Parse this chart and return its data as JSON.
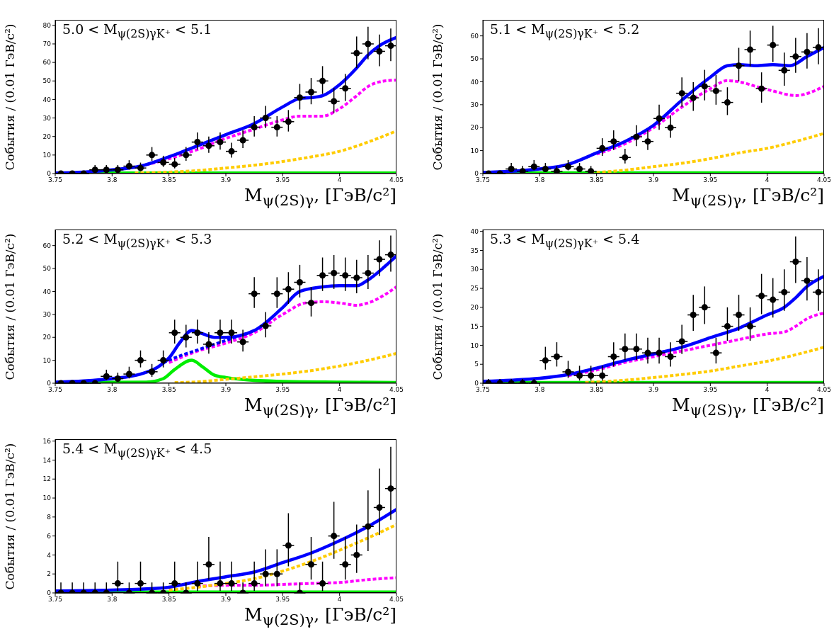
{
  "chart_data": [
    {
      "type": "scatter",
      "title": "5.0 < M$_{ψ(2S)γK⁺}$ < 5.1",
      "xlabel": "M$_{ψ(2S)γ}$, [ГэВ/c²]",
      "ylabel": "События / (0.01 ГэВ/c²)",
      "xlim": [
        3.75,
        4.05
      ],
      "xticks": [
        3.75,
        3.8,
        3.85,
        3.9,
        3.95,
        4,
        4.05
      ],
      "ylim": [
        0,
        83
      ],
      "yticks": [
        0,
        10,
        20,
        30,
        40,
        50,
        60,
        70,
        80
      ],
      "series": [
        {
          "type": "line",
          "color": "#00ee00",
          "line_style": "solid",
          "x": [
            3.75,
            4.05
          ],
          "values": [
            0.3,
            0.3
          ]
        },
        {
          "type": "line",
          "color": "#ffcc00",
          "line_style": "dashed",
          "x": [
            3.82,
            3.85,
            3.875,
            3.9,
            3.925,
            3.95,
            3.975,
            4,
            4.025,
            4.05
          ],
          "values": [
            0.3,
            0.8,
            1.6,
            3,
            4.5,
            6.5,
            9,
            12,
            17,
            23
          ]
        },
        {
          "type": "line",
          "color": "#ff00ff",
          "line_style": "dashed",
          "x": [
            3.825,
            3.85,
            3.875,
            3.9,
            3.925,
            3.95,
            3.965,
            3.985,
            4,
            4.015,
            4.025,
            4.035,
            4.05
          ],
          "values": [
            4,
            8,
            13,
            19,
            24,
            29,
            31,
            31,
            35,
            42,
            47,
            49.5,
            50.5
          ]
        },
        {
          "type": "line",
          "color": "#0000ff",
          "line_style": "solid",
          "x": [
            3.75,
            3.775,
            3.8,
            3.825,
            3.85,
            3.875,
            3.9,
            3.925,
            3.95,
            3.965,
            3.975,
            3.985,
            4,
            4.015,
            4.025,
            4.035,
            4.05
          ],
          "values": [
            0.3,
            0.8,
            2,
            4,
            9,
            15,
            21,
            27,
            36,
            40.5,
            41,
            42,
            48,
            57,
            64,
            69,
            73.5
          ]
        },
        {
          "color": "#000000",
          "marker": "circle",
          "x": [
            3.755,
            3.765,
            3.775,
            3.785,
            3.795,
            3.805,
            3.815,
            3.825,
            3.835,
            3.845,
            3.855,
            3.865,
            3.875,
            3.885,
            3.895,
            3.905,
            3.915,
            3.925,
            3.935,
            3.945,
            3.955,
            3.965,
            3.975,
            3.985,
            3.995,
            4.005,
            4.015,
            4.025,
            4.035,
            4.045
          ],
          "values": [
            0,
            0,
            0,
            2,
            2,
            2,
            4,
            3,
            10,
            6,
            5,
            10,
            17,
            15,
            17,
            12,
            18,
            25,
            30,
            25,
            28,
            41,
            44,
            50,
            39,
            46,
            65,
            70,
            66,
            69
          ],
          "errors": [
            [
              0,
              1.1
            ],
            [
              0,
              1.1
            ],
            [
              0,
              1.1
            ],
            [
              0.7,
              4.6
            ],
            [
              0.7,
              4.6
            ],
            [
              0.7,
              4.6
            ],
            [
              2.1,
              7.2
            ],
            [
              1.4,
              5.9
            ],
            [
              6.9,
              14.3
            ],
            [
              3.6,
              9.6
            ],
            [
              2.8,
              8.4
            ],
            [
              6.9,
              14.3
            ],
            [
              12.9,
              22.2
            ],
            [
              11.2,
              20
            ],
            [
              12.9,
              22.2
            ],
            [
              8.6,
              16.6
            ],
            [
              13.8,
              23.3
            ],
            [
              20,
              31
            ],
            [
              24.6,
              36.5
            ],
            [
              20,
              31
            ],
            [
              22.7,
              34.3
            ],
            [
              34.6,
              48.4
            ],
            [
              37.4,
              51.6
            ],
            [
              43,
              58
            ],
            [
              32.8,
              46.2
            ],
            [
              39.2,
              53.8
            ],
            [
              57,
              74
            ],
            [
              61.7,
              79.3
            ],
            [
              57.9,
              75.1
            ],
            [
              60.7,
              78.3
            ]
          ],
          "xerrors": [
            0.005,
            0.005,
            0.005,
            0.005,
            0.005,
            0.005,
            0.005,
            0.005,
            0.005,
            0.005,
            0.005,
            0.005,
            0.005,
            0.005,
            0.005,
            0.005,
            0.005,
            0.005,
            0.005,
            0.005,
            0.005,
            0.005,
            0.005,
            0.005,
            0.005,
            0.005,
            0.005,
            0.005,
            0.005,
            0.005
          ]
        }
      ]
    },
    {
      "type": "scatter",
      "title": "5.1 < M$_{ψ(2S)γK⁺}$ < 5.2",
      "xlabel": "M$_{ψ(2S)γ}$, [ГэВ/c²]",
      "ylabel": "События / (0.01 ГэВ/c²)",
      "xlim": [
        3.75,
        4.05
      ],
      "xticks": [
        3.75,
        3.8,
        3.85,
        3.9,
        3.95,
        4,
        4.05
      ],
      "ylim": [
        0,
        67
      ],
      "yticks": [
        0,
        10,
        20,
        30,
        40,
        50,
        60
      ],
      "series": [
        {
          "type": "line",
          "color": "#00ee00",
          "line_style": "solid",
          "x": [
            3.75,
            4.05
          ],
          "values": [
            0.3,
            0.3
          ]
        },
        {
          "type": "line",
          "color": "#ffcc00",
          "line_style": "dashed",
          "x": [
            3.845,
            3.875,
            3.9,
            3.925,
            3.95,
            3.975,
            4,
            4.025,
            4.05
          ],
          "values": [
            0.3,
            1.5,
            3,
            4.5,
            6.5,
            9,
            11,
            14,
            17.5
          ]
        },
        {
          "type": "line",
          "color": "#ff00ff",
          "line_style": "dashed",
          "x": [
            3.85,
            3.875,
            3.9,
            3.925,
            3.95,
            3.965,
            3.975,
            3.99,
            4.005,
            4.025,
            4.05
          ],
          "values": [
            8.5,
            13,
            20,
            29,
            37,
            40.5,
            40,
            38,
            36,
            34,
            38
          ]
        },
        {
          "type": "line",
          "color": "#0000ff",
          "line_style": "solid",
          "x": [
            3.75,
            3.775,
            3.8,
            3.825,
            3.85,
            3.875,
            3.9,
            3.925,
            3.95,
            3.965,
            3.975,
            3.99,
            4.005,
            4.02,
            4.035,
            4.05
          ],
          "values": [
            0.5,
            1,
            2,
            4,
            9,
            14,
            21,
            32,
            42,
            47,
            47.5,
            47,
            47.5,
            47,
            51,
            55
          ]
        },
        {
          "color": "#000000",
          "marker": "circle",
          "x": [
            3.755,
            3.765,
            3.775,
            3.785,
            3.795,
            3.805,
            3.815,
            3.825,
            3.835,
            3.845,
            3.855,
            3.865,
            3.875,
            3.885,
            3.895,
            3.905,
            3.915,
            3.925,
            3.935,
            3.945,
            3.955,
            3.965,
            3.975,
            3.985,
            3.995,
            4.005,
            4.015,
            4.025,
            4.035,
            4.045
          ],
          "values": [
            0,
            0,
            2,
            1,
            3,
            2,
            1,
            3,
            2,
            1,
            11,
            14,
            7,
            16,
            14,
            24,
            20,
            35,
            33,
            38,
            36,
            31,
            47,
            54,
            37,
            56,
            45,
            51,
            53,
            55
          ],
          "errors": [
            [
              0,
              1.1
            ],
            [
              0,
              1.1
            ],
            [
              0.7,
              4.6
            ],
            [
              0.2,
              3.3
            ],
            [
              1.4,
              5.9
            ],
            [
              0.7,
              4.6
            ],
            [
              0.2,
              3.3
            ],
            [
              1.4,
              5.9
            ],
            [
              0.7,
              4.6
            ],
            [
              0.2,
              3.3
            ],
            [
              7.7,
              15.4
            ],
            [
              10.3,
              18.8
            ],
            [
              4.4,
              10.8
            ],
            [
              12,
              21.1
            ],
            [
              10.3,
              18.8
            ],
            [
              19.1,
              30
            ],
            [
              15.6,
              25.5
            ],
            [
              29.1,
              41.9
            ],
            [
              27.3,
              39.8
            ],
            [
              31.9,
              45.2
            ],
            [
              30,
              43
            ],
            [
              25.5,
              37.6
            ],
            [
              40.2,
              54.8
            ],
            [
              46.7,
              62.3
            ],
            [
              30.9,
              44.1
            ],
            [
              48.6,
              64.4
            ],
            [
              38.3,
              52.7
            ],
            [
              43.9,
              59.1
            ],
            [
              45.8,
              61.2
            ],
            [
              47.6,
              63.4
            ]
          ],
          "xerrors": [
            0.005,
            0.005,
            0.005,
            0.005,
            0.005,
            0.005,
            0.005,
            0.005,
            0.005,
            0.005,
            0.005,
            0.005,
            0.005,
            0.005,
            0.005,
            0.005,
            0.005,
            0.005,
            0.005,
            0.005,
            0.005,
            0.005,
            0.005,
            0.005,
            0.005,
            0.005,
            0.005,
            0.005,
            0.005,
            0.005
          ]
        }
      ]
    },
    {
      "type": "scatter",
      "title": "5.2 < M$_{ψ(2S)γK⁺}$ < 5.3",
      "xlabel": "M$_{ψ(2S)γ}$, [ГэВ/c²]",
      "ylabel": "События / (0.01 ГэВ/c²)",
      "xlim": [
        3.75,
        4.05
      ],
      "xticks": [
        3.75,
        3.8,
        3.85,
        3.9,
        3.95,
        4,
        4.05
      ],
      "ylim": [
        0,
        67
      ],
      "yticks": [
        0,
        10,
        20,
        30,
        40,
        50,
        60
      ],
      "series": [
        {
          "type": "line",
          "color": "#00ee00",
          "line_style": "solid",
          "x": [
            3.75,
            3.83,
            3.845,
            3.855,
            3.87,
            3.88,
            3.89,
            3.9,
            3.925,
            3.95,
            4,
            4.05
          ],
          "values": [
            0.3,
            0.5,
            2,
            6,
            10,
            7,
            3.5,
            2.5,
            1.2,
            0.8,
            0.5,
            0.3
          ]
        },
        {
          "type": "line",
          "color": "#ffcc00",
          "line_style": "dashed",
          "x": [
            3.855,
            3.875,
            3.9,
            3.925,
            3.95,
            3.975,
            4,
            4.025,
            4.05
          ],
          "values": [
            0.3,
            0.6,
            1.7,
            2.8,
            4,
            5.5,
            7.5,
            10,
            13
          ]
        },
        {
          "type": "line",
          "color": "#ff00ff",
          "line_style": "dashed",
          "x": [
            3.85,
            3.875,
            3.9,
            3.925,
            3.95,
            3.97,
            3.985,
            4,
            4.015,
            4.025,
            4.05
          ],
          "values": [
            9,
            14,
            17.5,
            22,
            30,
            35,
            35.5,
            35,
            34,
            35,
            42
          ]
        },
        {
          "type": "line",
          "color": "#0000ff",
          "line_style": "dashed",
          "x": [
            3.845,
            3.86,
            3.875,
            3.89,
            3.905,
            3.92
          ],
          "values": [
            9,
            12,
            14.5,
            17,
            19.5,
            22
          ]
        },
        {
          "type": "line",
          "color": "#0000ff",
          "line_style": "solid",
          "x": [
            3.75,
            3.775,
            3.8,
            3.825,
            3.84,
            3.85,
            3.86,
            3.87,
            3.88,
            3.89,
            3.9,
            3.925,
            3.95,
            3.965,
            3.985,
            4,
            4.015,
            4.025,
            4.04,
            4.05
          ],
          "values": [
            0.5,
            1,
            2,
            4,
            7,
            11,
            18,
            23,
            21.5,
            20,
            20,
            23,
            33,
            40,
            42,
            42.5,
            42.5,
            45,
            51,
            55.5
          ]
        },
        {
          "color": "#000000",
          "marker": "circle",
          "x": [
            3.755,
            3.765,
            3.775,
            3.785,
            3.795,
            3.805,
            3.815,
            3.825,
            3.835,
            3.845,
            3.855,
            3.865,
            3.875,
            3.885,
            3.895,
            3.905,
            3.915,
            3.925,
            3.935,
            3.945,
            3.955,
            3.965,
            3.975,
            3.985,
            3.995,
            4.005,
            4.015,
            4.025,
            4.035,
            4.045
          ],
          "values": [
            0,
            0,
            0,
            0,
            3,
            2,
            4,
            10,
            5,
            10,
            22,
            20,
            22,
            17,
            22,
            22,
            18,
            39,
            25,
            39,
            41,
            44,
            35,
            47,
            48,
            47,
            46,
            48,
            54,
            56
          ],
          "errors": [
            [
              0,
              1.1
            ],
            [
              0,
              1.1
            ],
            [
              0,
              1.1
            ],
            [
              0,
              1.1
            ],
            [
              1.4,
              5.9
            ],
            [
              0.7,
              4.6
            ],
            [
              2.1,
              7.2
            ],
            [
              6.9,
              14.3
            ],
            [
              2.8,
              8.4
            ],
            [
              6.9,
              14.3
            ],
            [
              17.3,
              27.7
            ],
            [
              15.6,
              25.5
            ],
            [
              17.3,
              27.7
            ],
            [
              12.9,
              22.2
            ],
            [
              17.3,
              27.7
            ],
            [
              17.3,
              27.7
            ],
            [
              13.8,
              23.3
            ],
            [
              32.8,
              46.2
            ],
            [
              20,
              31
            ],
            [
              32.8,
              46.2
            ],
            [
              34.6,
              48.4
            ],
            [
              37.4,
              51.6
            ],
            [
              29.1,
              41.9
            ],
            [
              40.2,
              54.8
            ],
            [
              41.1,
              55.9
            ],
            [
              40.2,
              54.8
            ],
            [
              39.2,
              53.8
            ],
            [
              41.1,
              55.9
            ],
            [
              46.7,
              62.3
            ],
            [
              48.6,
              64.4
            ]
          ],
          "xerrors": [
            0.005,
            0.005,
            0.005,
            0.005,
            0.005,
            0.005,
            0.005,
            0.005,
            0.005,
            0.005,
            0.005,
            0.005,
            0.005,
            0.005,
            0.005,
            0.005,
            0.005,
            0.005,
            0.005,
            0.005,
            0.005,
            0.005,
            0.005,
            0.005,
            0.005,
            0.005,
            0.005,
            0.005,
            0.005,
            0.005
          ]
        }
      ]
    },
    {
      "type": "scatter",
      "title": "5.3 < M$_{ψ(2S)γK⁺}$ < 5.4",
      "xlabel": "M$_{ψ(2S)γ}$, [ГэВ/c²]",
      "ylabel": "События / (0.01 ГэВ/c²)",
      "xlim": [
        3.75,
        4.05
      ],
      "xticks": [
        3.75,
        3.8,
        3.85,
        3.9,
        3.95,
        4,
        4.05
      ],
      "ylim": [
        0,
        40.5
      ],
      "yticks": [
        0,
        5,
        10,
        15,
        20,
        25,
        30,
        35,
        40
      ],
      "series": [
        {
          "type": "line",
          "color": "#00ee00",
          "line_style": "solid",
          "x": [
            3.75,
            4.05
          ],
          "values": [
            0.2,
            0.2
          ]
        },
        {
          "type": "line",
          "color": "#ffcc00",
          "line_style": "dashed",
          "x": [
            3.84,
            3.875,
            3.9,
            3.925,
            3.95,
            3.975,
            4,
            4.025,
            4.05
          ],
          "values": [
            0.2,
            0.8,
            1.5,
            2.3,
            3.2,
            4.5,
            5.8,
            7.5,
            9.5
          ]
        },
        {
          "type": "line",
          "color": "#ff00ff",
          "line_style": "dashed",
          "x": [
            3.825,
            3.85,
            3.875,
            3.9,
            3.925,
            3.95,
            3.975,
            4,
            4.015,
            4.025,
            4.035,
            4.05
          ],
          "values": [
            2,
            3.5,
            5.5,
            7,
            8.5,
            10,
            11.5,
            13,
            13.5,
            15,
            17,
            18.5
          ]
        },
        {
          "type": "line",
          "color": "#0000ff",
          "line_style": "solid",
          "x": [
            3.75,
            3.775,
            3.8,
            3.825,
            3.85,
            3.875,
            3.9,
            3.925,
            3.95,
            3.975,
            4,
            4.015,
            4.025,
            4.035,
            4.05
          ],
          "values": [
            0.5,
            0.8,
            1.3,
            2.3,
            4,
            6,
            7.7,
            9.5,
            12,
            14.5,
            18,
            20,
            22.5,
            25.5,
            28.2
          ]
        },
        {
          "color": "#000000",
          "marker": "circle",
          "x": [
            3.755,
            3.765,
            3.775,
            3.785,
            3.795,
            3.805,
            3.815,
            3.825,
            3.835,
            3.845,
            3.855,
            3.865,
            3.875,
            3.885,
            3.895,
            3.905,
            3.915,
            3.925,
            3.935,
            3.945,
            3.955,
            3.965,
            3.975,
            3.985,
            3.995,
            4.005,
            4.015,
            4.025,
            4.035,
            4.045
          ],
          "values": [
            0,
            0,
            0,
            0,
            0,
            6,
            7,
            3,
            2,
            2,
            2,
            7,
            9,
            9,
            8,
            8,
            7,
            11,
            18,
            20,
            8,
            15,
            18,
            15,
            23,
            22,
            24,
            32,
            27,
            24
          ],
          "errors": [
            [
              0,
              1.1
            ],
            [
              0,
              1.1
            ],
            [
              0,
              1.1
            ],
            [
              0,
              1.1
            ],
            [
              0,
              1.1
            ],
            [
              3.6,
              9.6
            ],
            [
              4.4,
              10.8
            ],
            [
              1.4,
              5.9
            ],
            [
              0.7,
              4.6
            ],
            [
              0.7,
              4.6
            ],
            [
              0.7,
              4.6
            ],
            [
              4.4,
              10.8
            ],
            [
              6.1,
              13.1
            ],
            [
              6.1,
              13.1
            ],
            [
              5.2,
              12
            ],
            [
              5.2,
              12
            ],
            [
              4.4,
              10.8
            ],
            [
              7.7,
              15.4
            ],
            [
              13.8,
              23.3
            ],
            [
              15.6,
              25.5
            ],
            [
              5.2,
              12
            ],
            [
              11.2,
              20
            ],
            [
              13.8,
              23.3
            ],
            [
              11.2,
              20
            ],
            [
              18.2,
              28.8
            ],
            [
              17.3,
              27.7
            ],
            [
              19.1,
              30
            ],
            [
              26.4,
              38.7
            ],
            [
              21.8,
              33.2
            ],
            [
              19.1,
              30
            ]
          ],
          "xerrors": [
            0.005,
            0.005,
            0.005,
            0.005,
            0.005,
            0.005,
            0.005,
            0.005,
            0.005,
            0.005,
            0.005,
            0.005,
            0.005,
            0.005,
            0.005,
            0.005,
            0.005,
            0.005,
            0.005,
            0.005,
            0.005,
            0.005,
            0.005,
            0.005,
            0.005,
            0.005,
            0.005,
            0.005,
            0.005,
            0.005
          ]
        }
      ]
    },
    {
      "type": "scatter",
      "title": "5.4 < M$_{ψ(2S)γK⁺}$ < 4.5",
      "xlabel": "M$_{ψ(2S)γ}$, [ГэВ/c²]",
      "ylabel": "События / (0.01 ГэВ/c²)",
      "xlim": [
        3.75,
        4.05
      ],
      "xticks": [
        3.75,
        3.8,
        3.85,
        3.9,
        3.95,
        4,
        4.05
      ],
      "ylim": [
        0,
        16.2
      ],
      "yticks": [
        0,
        2,
        4,
        6,
        8,
        10,
        12,
        14,
        16
      ],
      "series": [
        {
          "type": "line",
          "color": "#00ee00",
          "line_style": "solid",
          "x": [
            3.75,
            4.05
          ],
          "values": [
            0.1,
            0.1
          ]
        },
        {
          "type": "line",
          "color": "#ff00ff",
          "line_style": "dashed",
          "x": [
            3.875,
            3.9,
            3.925,
            3.95,
            3.975,
            4,
            4.025,
            4.05
          ],
          "values": [
            0.7,
            0.8,
            0.8,
            0.9,
            1,
            1.1,
            1.4,
            1.6
          ]
        },
        {
          "type": "line",
          "color": "#ffcc00",
          "line_style": "dashed",
          "x": [
            3.85,
            3.875,
            3.9,
            3.925,
            3.95,
            3.975,
            4,
            4.025,
            4.05
          ],
          "values": [
            0.3,
            0.6,
            1,
            1.5,
            2.3,
            3.3,
            4.5,
            5.8,
            7.2
          ]
        },
        {
          "type": "line",
          "color": "#0000ff",
          "line_style": "solid",
          "x": [
            3.75,
            3.8,
            3.825,
            3.85,
            3.875,
            3.9,
            3.925,
            3.95,
            3.975,
            4,
            4.025,
            4.05
          ],
          "values": [
            0.2,
            0.3,
            0.4,
            0.6,
            1.2,
            1.7,
            2.2,
            3.2,
            4.2,
            5.5,
            7,
            8.8
          ]
        },
        {
          "color": "#000000",
          "marker": "circle",
          "x": [
            3.755,
            3.765,
            3.775,
            3.785,
            3.795,
            3.805,
            3.815,
            3.825,
            3.835,
            3.845,
            3.855,
            3.865,
            3.875,
            3.885,
            3.895,
            3.905,
            3.915,
            3.925,
            3.935,
            3.945,
            3.955,
            3.965,
            3.975,
            3.985,
            3.995,
            4.005,
            4.015,
            4.025,
            4.035,
            4.045
          ],
          "values": [
            0,
            0,
            0,
            0,
            0,
            1,
            0,
            1,
            0,
            0,
            1,
            0,
            1,
            3,
            1,
            1,
            0,
            1,
            2,
            2,
            5,
            0,
            3,
            1,
            6,
            3,
            4,
            7,
            9,
            11
          ],
          "errors": [
            [
              0,
              1.1
            ],
            [
              0,
              1.1
            ],
            [
              0,
              1.1
            ],
            [
              0,
              1.1
            ],
            [
              0,
              1.1
            ],
            [
              0.2,
              3.3
            ],
            [
              0,
              1.1
            ],
            [
              0.2,
              3.3
            ],
            [
              0,
              1.1
            ],
            [
              0,
              1.1
            ],
            [
              0.2,
              3.3
            ],
            [
              0,
              1.1
            ],
            [
              0.2,
              3.3
            ],
            [
              1.4,
              5.9
            ],
            [
              0.2,
              3.3
            ],
            [
              0.2,
              3.3
            ],
            [
              0,
              1.1
            ],
            [
              0.2,
              3.3
            ],
            [
              0.7,
              4.6
            ],
            [
              0.7,
              4.6
            ],
            [
              2.8,
              8.4
            ],
            [
              0,
              1.1
            ],
            [
              1.4,
              5.9
            ],
            [
              0.2,
              3.3
            ],
            [
              3.6,
              9.6
            ],
            [
              1.4,
              5.9
            ],
            [
              2.1,
              7.2
            ],
            [
              4.4,
              10.8
            ],
            [
              6.1,
              13.1
            ],
            [
              7.7,
              15.4
            ]
          ],
          "xerrors": [
            0.005,
            0.005,
            0.005,
            0.005,
            0.005,
            0.005,
            0.005,
            0.005,
            0.005,
            0.005,
            0.005,
            0.005,
            0.005,
            0.005,
            0.005,
            0.005,
            0.005,
            0.005,
            0.005,
            0.005,
            0.005,
            0.005,
            0.005,
            0.005,
            0.005,
            0.005,
            0.005,
            0.005,
            0.005,
            0.005
          ]
        }
      ]
    }
  ]
}
